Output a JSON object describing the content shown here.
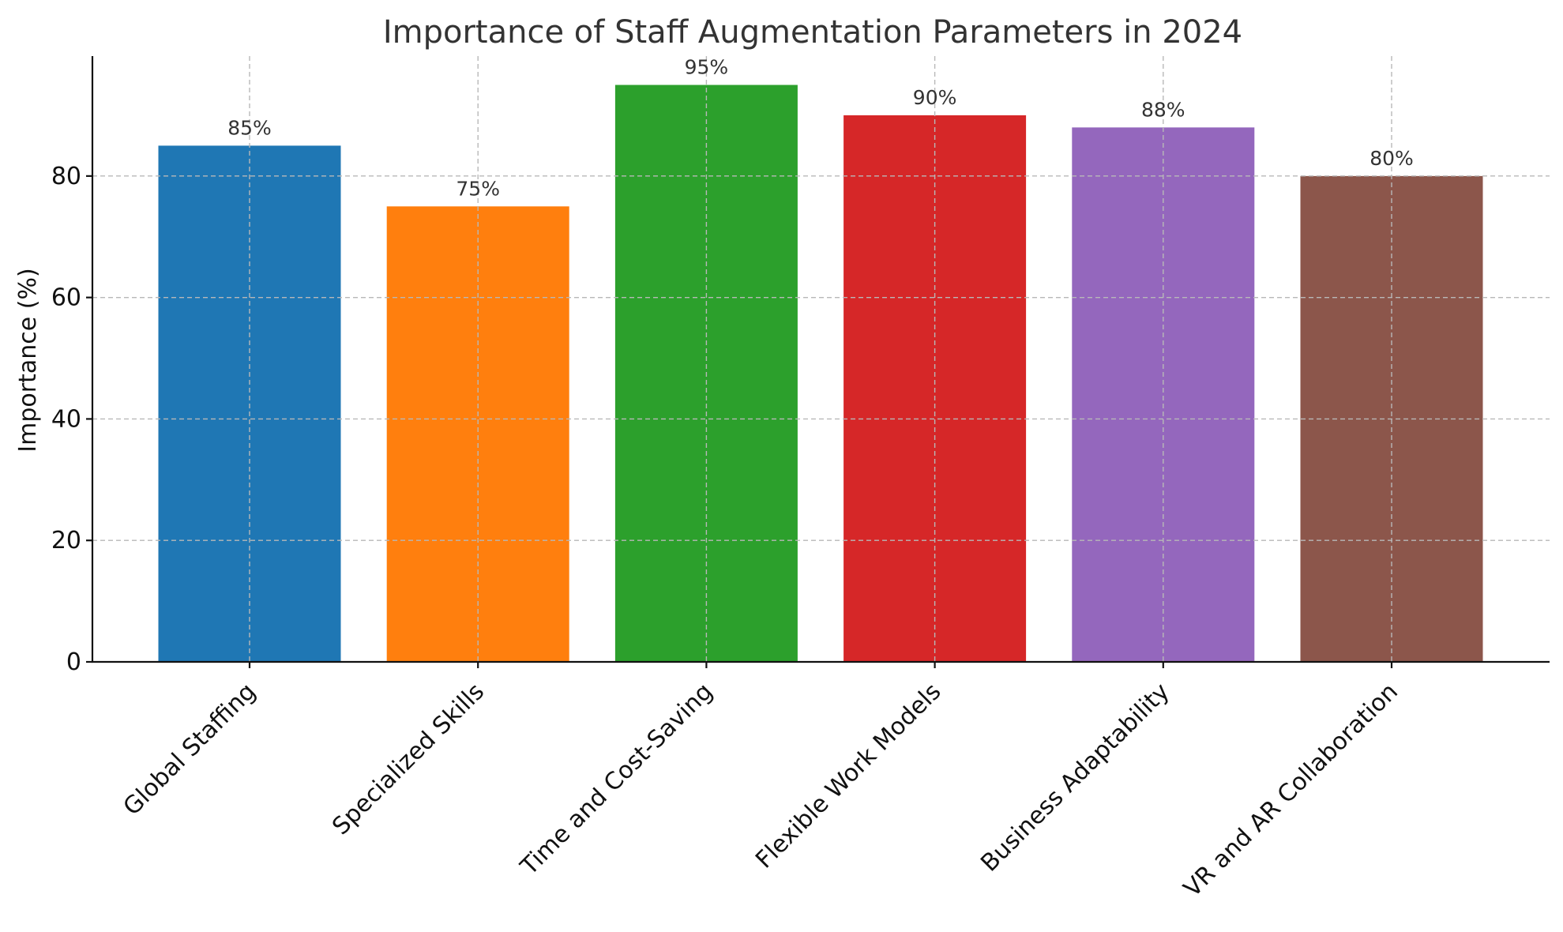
{
  "chart_data": {
    "type": "bar",
    "title": "Importance of Staff Augmentation Parameters in 2024",
    "xlabel": "",
    "ylabel": "Importance (%)",
    "categories": [
      "Global Staffing",
      "Specialized Skills",
      "Time and Cost-Saving",
      "Flexible Work Models",
      "Business Adaptability",
      "VR and AR Collaboration"
    ],
    "values": [
      85,
      75,
      95,
      90,
      88,
      80
    ],
    "data_labels": [
      "85%",
      "75%",
      "95%",
      "90%",
      "88%",
      "80%"
    ],
    "colors": [
      "#1f77b4",
      "#ff7f0e",
      "#2ca02c",
      "#d62728",
      "#9467bd",
      "#8c564b"
    ],
    "ylim": [
      0,
      99.75
    ],
    "yticks": [
      0,
      20,
      40,
      60,
      80
    ],
    "ytick_labels": [
      "0",
      "20",
      "40",
      "60",
      "80"
    ],
    "grid": true,
    "legend": "none"
  }
}
